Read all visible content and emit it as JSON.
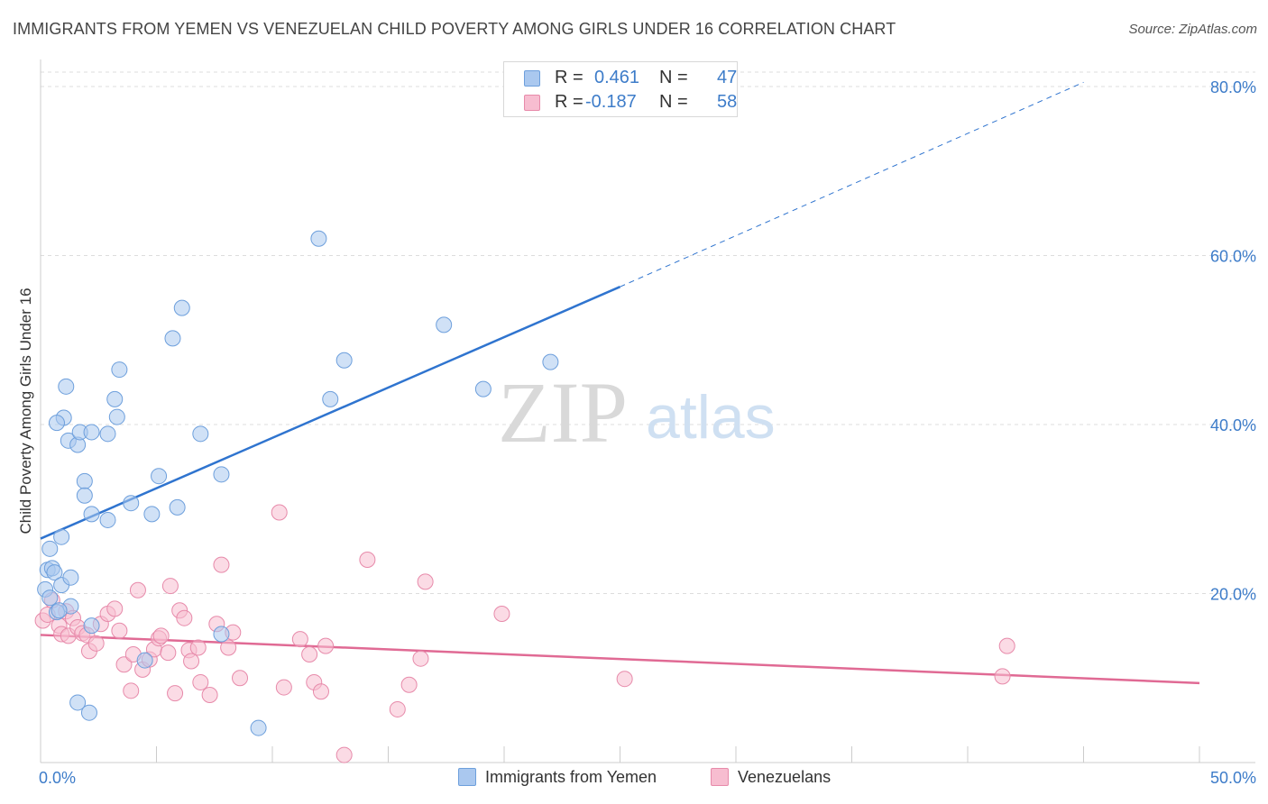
{
  "title": "IMMIGRANTS FROM YEMEN VS VENEZUELAN CHILD POVERTY AMONG GIRLS UNDER 16 CORRELATION CHART",
  "source": "Source: ZipAtlas.com",
  "watermark": {
    "zip": "ZIP",
    "atlas": "atlas"
  },
  "legend_top": {
    "rows": [
      {
        "r_label": "R =",
        "r_value": "0.461",
        "n_label": "N =",
        "n_value": "47"
      },
      {
        "r_label": "R =",
        "r_value": "-0.187",
        "n_label": "N =",
        "n_value": "58"
      }
    ]
  },
  "legend_bottom": {
    "series1": "Immigrants from Yemen",
    "series2": "Venezuelans"
  },
  "colors": {
    "blue_fill": "#aac8ef",
    "blue_stroke": "#6d9fdc",
    "blue_line": "#2f74cf",
    "pink_fill": "#f7bdd0",
    "pink_stroke": "#e78aaa",
    "pink_line": "#e06a94",
    "tick_text": "#3d7cc9",
    "grid": "#dddddd"
  },
  "chart_data": {
    "type": "scatter",
    "title": "IMMIGRANTS FROM YEMEN VS VENEZUELAN CHILD POVERTY AMONG GIRLS UNDER 16 CORRELATION CHART",
    "xlabel": "",
    "ylabel": "Child Poverty Among Girls Under 16",
    "xlim": [
      0,
      50
    ],
    "ylim": [
      0,
      80
    ],
    "x_tick_labels": [
      "0.0%",
      "50.0%"
    ],
    "y_ticks": [
      20,
      40,
      60,
      80
    ],
    "y_tick_labels": [
      "20.0%",
      "40.0%",
      "60.0%",
      "80.0%"
    ],
    "grid": true,
    "legend_position": "top-center",
    "series": [
      {
        "name": "Immigrants from Yemen",
        "color": "#aac8ef",
        "stats": {
          "R": 0.461,
          "N": 47
        },
        "trend": {
          "x_start": 0,
          "y_start": 26.5,
          "x_solid_end": 25,
          "y_solid_end": 56.3,
          "x_dash_end": 45,
          "y_dash_end": 80.5
        },
        "points": [
          [
            0.2,
            20.5
          ],
          [
            0.3,
            22.8
          ],
          [
            0.4,
            19.5
          ],
          [
            0.4,
            25.3
          ],
          [
            0.5,
            23.0
          ],
          [
            0.6,
            22.5
          ],
          [
            0.7,
            17.8
          ],
          [
            0.9,
            26.7
          ],
          [
            0.9,
            21.0
          ],
          [
            1.0,
            40.8
          ],
          [
            1.1,
            44.5
          ],
          [
            1.2,
            38.1
          ],
          [
            1.3,
            18.5
          ],
          [
            1.3,
            21.9
          ],
          [
            0.7,
            40.2
          ],
          [
            1.6,
            37.6
          ],
          [
            1.7,
            39.1
          ],
          [
            1.9,
            33.3
          ],
          [
            1.9,
            31.6
          ],
          [
            2.2,
            39.1
          ],
          [
            2.2,
            29.4
          ],
          [
            2.2,
            16.2
          ],
          [
            2.9,
            38.9
          ],
          [
            2.9,
            28.7
          ],
          [
            3.2,
            43.0
          ],
          [
            3.3,
            40.9
          ],
          [
            3.4,
            46.5
          ],
          [
            3.9,
            30.7
          ],
          [
            4.8,
            29.4
          ],
          [
            5.1,
            33.9
          ],
          [
            5.7,
            50.2
          ],
          [
            5.9,
            30.2
          ],
          [
            6.1,
            53.8
          ],
          [
            6.9,
            38.9
          ],
          [
            7.8,
            34.1
          ],
          [
            12.0,
            62.0
          ],
          [
            12.5,
            43.0
          ],
          [
            13.1,
            47.6
          ],
          [
            17.4,
            51.8
          ],
          [
            19.1,
            44.2
          ],
          [
            22.0,
            47.4
          ],
          [
            1.6,
            7.1
          ],
          [
            2.1,
            5.9
          ],
          [
            9.4,
            4.1
          ],
          [
            4.5,
            12.1
          ],
          [
            7.8,
            15.2
          ],
          [
            0.8,
            18.0
          ]
        ]
      },
      {
        "name": "Venezuelans",
        "color": "#f7bdd0",
        "stats": {
          "R": -0.187,
          "N": 58
        },
        "trend": {
          "x_start": 0,
          "y_start": 15.1,
          "x_end": 50,
          "y_end": 9.4
        },
        "points": [
          [
            0.1,
            16.8
          ],
          [
            0.3,
            17.5
          ],
          [
            0.5,
            19.2
          ],
          [
            0.8,
            16.2
          ],
          [
            0.9,
            15.2
          ],
          [
            1.1,
            17.9
          ],
          [
            1.2,
            15.0
          ],
          [
            1.4,
            17.1
          ],
          [
            1.6,
            16.0
          ],
          [
            1.8,
            15.3
          ],
          [
            2.0,
            15.1
          ],
          [
            2.1,
            13.2
          ],
          [
            2.4,
            14.1
          ],
          [
            2.6,
            16.4
          ],
          [
            2.9,
            17.6
          ],
          [
            3.2,
            18.2
          ],
          [
            3.4,
            15.6
          ],
          [
            3.6,
            11.6
          ],
          [
            3.9,
            8.5
          ],
          [
            4.0,
            12.8
          ],
          [
            4.2,
            20.4
          ],
          [
            4.4,
            11.0
          ],
          [
            4.7,
            12.2
          ],
          [
            4.9,
            13.4
          ],
          [
            5.1,
            14.7
          ],
          [
            5.2,
            15.0
          ],
          [
            5.5,
            13.0
          ],
          [
            5.6,
            20.9
          ],
          [
            5.8,
            8.2
          ],
          [
            6.0,
            18.0
          ],
          [
            6.2,
            17.1
          ],
          [
            6.4,
            13.3
          ],
          [
            6.5,
            12.0
          ],
          [
            6.8,
            13.6
          ],
          [
            6.9,
            9.5
          ],
          [
            7.3,
            8.0
          ],
          [
            7.6,
            16.4
          ],
          [
            7.8,
            23.4
          ],
          [
            8.1,
            13.6
          ],
          [
            8.3,
            15.4
          ],
          [
            8.6,
            10.0
          ],
          [
            10.3,
            29.6
          ],
          [
            10.5,
            8.9
          ],
          [
            11.2,
            14.6
          ],
          [
            11.6,
            12.8
          ],
          [
            11.8,
            9.5
          ],
          [
            12.1,
            8.4
          ],
          [
            12.3,
            13.8
          ],
          [
            13.1,
            0.9
          ],
          [
            14.1,
            24.0
          ],
          [
            15.4,
            6.3
          ],
          [
            15.9,
            9.2
          ],
          [
            16.4,
            12.3
          ],
          [
            16.6,
            21.4
          ],
          [
            19.9,
            17.6
          ],
          [
            25.2,
            9.9
          ],
          [
            41.5,
            10.2
          ],
          [
            41.7,
            13.8
          ]
        ]
      }
    ]
  }
}
